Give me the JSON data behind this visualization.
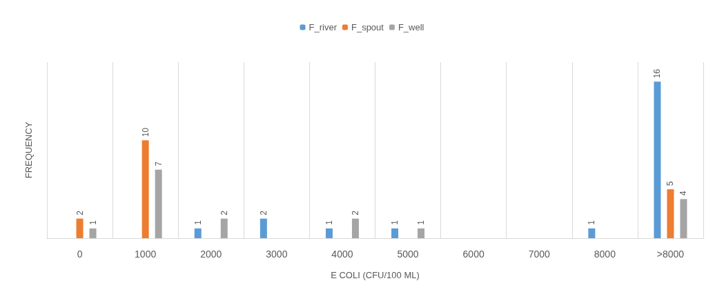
{
  "chart_data": {
    "type": "bar",
    "xlabel": "E COLI (CFU/100 ML)",
    "ylabel": "FREQUENCY",
    "categories": [
      "0",
      "1000",
      "2000",
      "3000",
      "4000",
      "5000",
      "6000",
      "7000",
      "8000",
      ">8000"
    ],
    "series": [
      {
        "name": "F_river",
        "color": "#5b9bd5",
        "values": [
          null,
          null,
          1,
          2,
          1,
          1,
          null,
          null,
          1,
          16
        ]
      },
      {
        "name": "F_spout",
        "color": "#ed7d31",
        "values": [
          2,
          10,
          null,
          null,
          null,
          null,
          null,
          null,
          null,
          5
        ]
      },
      {
        "name": "F_well",
        "color": "#a5a5a5",
        "values": [
          1,
          7,
          2,
          null,
          2,
          1,
          null,
          null,
          null,
          4
        ]
      }
    ],
    "data_labels": true,
    "grid": "x",
    "legend": "top",
    "tick_labels": "x"
  }
}
